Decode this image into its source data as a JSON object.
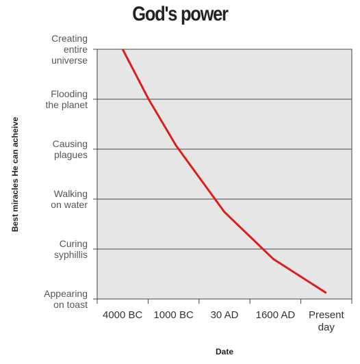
{
  "chart_data": {
    "type": "line",
    "title": "God's power",
    "xlabel": "Date",
    "ylabel": "Best miracles He can acheive",
    "xlim": [
      -0.5,
      4.5
    ],
    "ylim": [
      0,
      5
    ],
    "xticks": [
      {
        "value": 0,
        "label": "4000 BC"
      },
      {
        "value": 1,
        "label": "1000 BC"
      },
      {
        "value": 2,
        "label": "30 AD"
      },
      {
        "value": 3,
        "label": "1600 AD"
      },
      {
        "value": 4,
        "label": "Present\nday"
      }
    ],
    "yticks": [
      {
        "value": 0,
        "label": "Appearing\non toast"
      },
      {
        "value": 1,
        "label": "Curing\nsyphillis"
      },
      {
        "value": 2,
        "label": "Walking\non water"
      },
      {
        "value": 3,
        "label": "Causing\nplagues"
      },
      {
        "value": 4,
        "label": "Flooding\nthe planet"
      },
      {
        "value": 5,
        "label": "Creating\nentire\nuniverse"
      }
    ],
    "grid": true,
    "series": [
      {
        "color": "#dd1c1c",
        "x": [
          0,
          0.51,
          1.05,
          2.0,
          2.96,
          4.0
        ],
        "values": [
          5,
          4,
          3.07,
          1.74,
          0.8,
          0.12
        ]
      }
    ]
  }
}
